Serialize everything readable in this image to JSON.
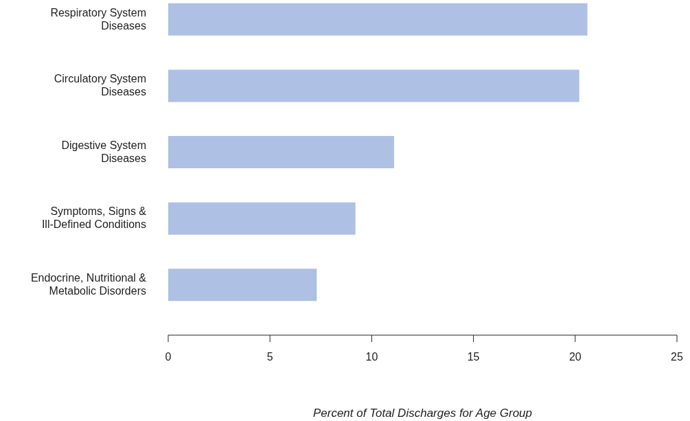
{
  "chart_data": {
    "type": "bar",
    "orientation": "horizontal",
    "xlabel": "Percent of Total Discharges for Age Group",
    "categories": [
      "Respiratory System\nDiseases",
      "Circulatory System\nDiseases",
      "Digestive System\nDiseases",
      "Symptoms, Signs &\nIll-Defined Conditions",
      "Endocrine, Nutritional &\nMetabolic Disorders"
    ],
    "values": [
      20.6,
      20.2,
      11.1,
      9.2,
      7.3
    ],
    "color": "#aec0e3",
    "xlim": [
      0,
      25
    ],
    "xticks": [
      0,
      5,
      10,
      15,
      20,
      25
    ],
    "grid": false
  }
}
